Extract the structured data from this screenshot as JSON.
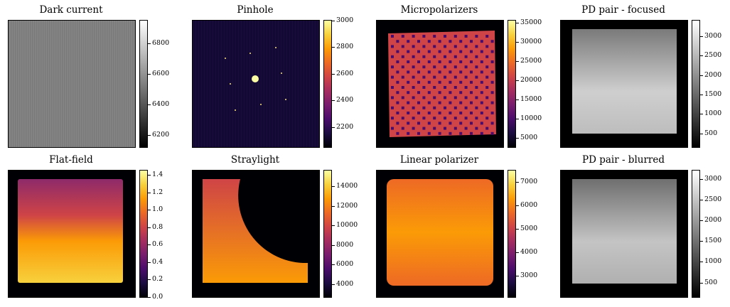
{
  "chart_data": [
    {
      "type": "heatmap",
      "title": "Dark current",
      "colormap": "gray",
      "colorbar_range": [
        6120,
        6950
      ],
      "colorbar_ticks": [
        6200,
        6400,
        6600,
        6800
      ],
      "colorbar_tick_labels": [
        "6200",
        "6400",
        "6600",
        "6800"
      ],
      "x_ticks": false,
      "y_ticks": false
    },
    {
      "type": "heatmap",
      "title": "Pinhole",
      "colormap": "inferno",
      "colorbar_range": [
        2050,
        3000
      ],
      "colorbar_ticks": [
        2200,
        2400,
        2600,
        2800,
        3000
      ],
      "colorbar_tick_labels": [
        "2200",
        "2400",
        "2600",
        "2800",
        "3000"
      ],
      "x_ticks": false,
      "y_ticks": false
    },
    {
      "type": "heatmap",
      "title": "Micropolarizers",
      "colormap": "inferno",
      "colorbar_range": [
        2500,
        35500
      ],
      "colorbar_ticks": [
        5000,
        10000,
        15000,
        20000,
        25000,
        30000,
        35000
      ],
      "colorbar_tick_labels": [
        "5000",
        "10000",
        "15000",
        "20000",
        "25000",
        "30000",
        "35000"
      ],
      "x_ticks": false,
      "y_ticks": false
    },
    {
      "type": "heatmap",
      "title": "PD pair - focused",
      "colormap": "gray",
      "colorbar_range": [
        150,
        3400
      ],
      "colorbar_ticks": [
        500,
        1000,
        1500,
        2000,
        2500,
        3000
      ],
      "colorbar_tick_labels": [
        "500",
        "1000",
        "1500",
        "2000",
        "2500",
        "3000"
      ],
      "x_ticks": false,
      "y_ticks": false
    },
    {
      "type": "heatmap",
      "title": "Flat-field",
      "colormap": "inferno",
      "colorbar_range": [
        0.0,
        1.45
      ],
      "colorbar_ticks": [
        0.0,
        0.2,
        0.4,
        0.6,
        0.8,
        1.0,
        1.2,
        1.4
      ],
      "colorbar_tick_labels": [
        "0.0",
        "0.2",
        "0.4",
        "0.6",
        "0.8",
        "1.0",
        "1.2",
        "1.4"
      ],
      "x_ticks": false,
      "y_ticks": false
    },
    {
      "type": "heatmap",
      "title": "Straylight",
      "colormap": "inferno",
      "colorbar_range": [
        2700,
        15600
      ],
      "colorbar_ticks": [
        4000,
        6000,
        8000,
        10000,
        12000,
        14000
      ],
      "colorbar_tick_labels": [
        "4000",
        "6000",
        "8000",
        "10000",
        "12000",
        "14000"
      ],
      "x_ticks": false,
      "y_ticks": false
    },
    {
      "type": "heatmap",
      "title": "Linear polarizer",
      "colormap": "inferno",
      "colorbar_range": [
        2100,
        7500
      ],
      "colorbar_ticks": [
        3000,
        4000,
        5000,
        6000,
        7000
      ],
      "colorbar_tick_labels": [
        "3000",
        "4000",
        "5000",
        "6000",
        "7000"
      ],
      "x_ticks": false,
      "y_ticks": false
    },
    {
      "type": "heatmap",
      "title": "PD pair - blurred",
      "colormap": "gray",
      "colorbar_range": [
        150,
        3200
      ],
      "colorbar_ticks": [
        500,
        1000,
        1500,
        2000,
        2500,
        3000
      ],
      "colorbar_tick_labels": [
        "500",
        "1000",
        "1500",
        "2000",
        "2500",
        "3000"
      ],
      "x_ticks": false,
      "y_ticks": false
    }
  ]
}
